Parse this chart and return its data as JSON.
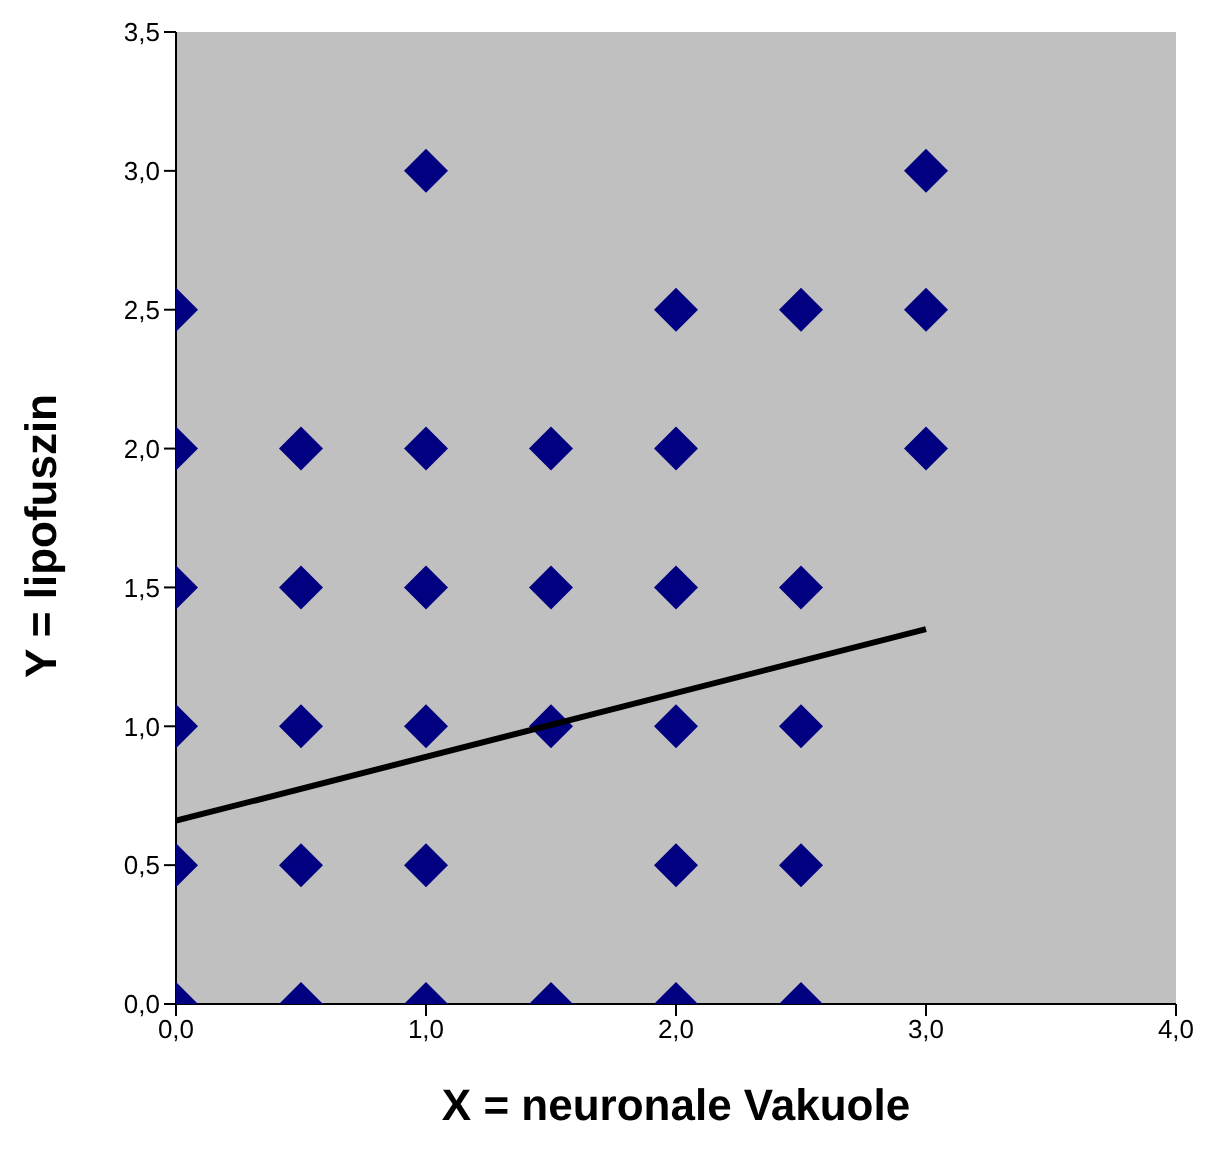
{
  "chart_data": {
    "type": "scatter",
    "xlabel": "X = neuronale Vakuole",
    "ylabel": "Y = lipofuszin",
    "marker": "diamond",
    "grid": false,
    "legend": false,
    "xlim": [
      0,
      4
    ],
    "xticks": [
      {
        "value": 0,
        "label": "0,0"
      },
      {
        "value": 1,
        "label": "1,0"
      },
      {
        "value": 2,
        "label": "2,0"
      },
      {
        "value": 3,
        "label": "3,0"
      },
      {
        "value": 4,
        "label": "4,0"
      }
    ],
    "ylim": [
      0,
      3.5
    ],
    "yticks": [
      {
        "value": 0,
        "label": "0,0"
      },
      {
        "value": 0.5,
        "label": "0,5"
      },
      {
        "value": 1,
        "label": "1,0"
      },
      {
        "value": 1.5,
        "label": "1,5"
      },
      {
        "value": 2,
        "label": "2,0"
      },
      {
        "value": 2.5,
        "label": "2,5"
      },
      {
        "value": 3,
        "label": "3,0"
      },
      {
        "value": 3.5,
        "label": "3,5"
      }
    ],
    "series": [
      {
        "color": "#000080",
        "x": [
          0,
          0,
          0,
          0,
          0,
          0,
          0.5,
          0.5,
          0.5,
          0.5,
          0.5,
          1,
          1,
          1,
          1,
          1,
          1,
          1.5,
          1.5,
          1.5,
          1.5,
          2,
          2,
          2,
          2,
          2,
          2,
          2.5,
          2.5,
          2.5,
          2.5,
          2.5,
          3,
          3,
          3
        ],
        "values": [
          0,
          0.5,
          1,
          1.5,
          2,
          2.5,
          0,
          0.5,
          1,
          1.5,
          2,
          0,
          0.5,
          1,
          1.5,
          2,
          3,
          0,
          1,
          1.5,
          2,
          0,
          0.5,
          1,
          1.5,
          2,
          2.5,
          0,
          0.5,
          1,
          1.5,
          2.5,
          2,
          2.5,
          3
        ]
      },
      {
        "type": "line",
        "marker": "none",
        "color": "#000000",
        "x": [
          0,
          3
        ],
        "values": [
          0.66,
          1.35
        ]
      }
    ]
  }
}
